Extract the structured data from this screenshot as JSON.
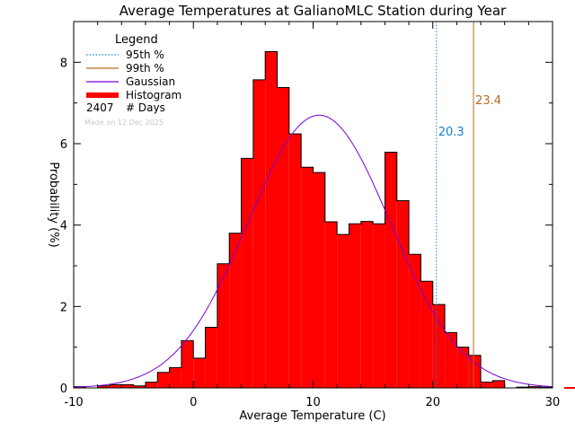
{
  "chart_data": {
    "type": "bar",
    "title": "Average Temperatures at GalianoMLC Station during Year",
    "xlabel": "Average Temperature (C)",
    "ylabel": "Probability (%)",
    "xlim": [
      -10,
      30
    ],
    "ylim": [
      0,
      9
    ],
    "x_ticks": [
      -10,
      0,
      10,
      20,
      30
    ],
    "y_ticks": [
      0,
      2,
      4,
      6,
      8
    ],
    "bin_width": 1,
    "bin_start": -10,
    "values": [
      0.03,
      0.0,
      0.05,
      0.08,
      0.08,
      0.05,
      0.14,
      0.38,
      0.5,
      1.16,
      0.73,
      1.49,
      3.05,
      3.8,
      5.64,
      7.57,
      8.26,
      7.38,
      6.24,
      5.42,
      5.29,
      4.08,
      3.77,
      4.03,
      4.09,
      4.03,
      5.79,
      4.6,
      3.28,
      2.62,
      2.05,
      1.36,
      1.0,
      0.8,
      0.14,
      0.18,
      0.0,
      0.02,
      0.03,
      0.02
    ],
    "gaussian": {
      "mean": 10.5,
      "peak": 6.7,
      "sigma": 5.95
    },
    "percentiles": [
      {
        "label": "95th %",
        "value": 20.3,
        "text": "20.3",
        "color": "#1a7fc9"
      },
      {
        "label": "99th %",
        "value": 23.4,
        "text": "23.4",
        "color": "#b86a1c"
      }
    ],
    "legend": {
      "title": "Legend",
      "items": [
        {
          "label": "95th %",
          "style": "dotted",
          "color": "#1a7fc9"
        },
        {
          "label": "99th %",
          "style": "solid",
          "color": "#b86a1c"
        },
        {
          "label": "Gaussian",
          "style": "solid",
          "color": "#7b00d6"
        },
        {
          "label": "Histogram",
          "style": "thick",
          "color": "#ff0000"
        }
      ],
      "days_count": "2407",
      "days_label": "# Days",
      "made_on": "Made on 12 Dec 2025"
    },
    "colors": {
      "bar": "#ff0000",
      "gaussian": "#7b00d6",
      "axis": "#000000"
    }
  }
}
